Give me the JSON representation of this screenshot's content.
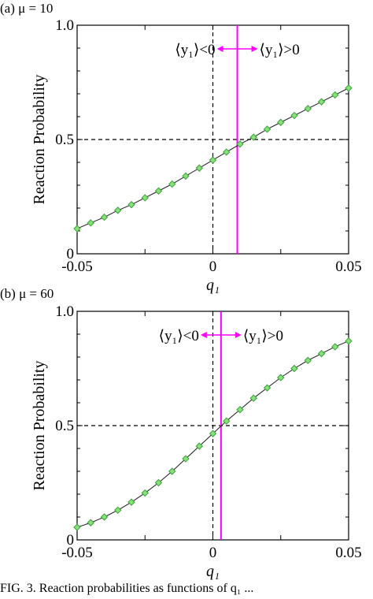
{
  "chart_data": [
    {
      "type": "line",
      "panel_label": "(a) μ = 10",
      "xlabel": "q₁",
      "ylabel": "Reaction Probability",
      "xlim": [
        -0.05,
        0.05
      ],
      "ylim": [
        0,
        1.0
      ],
      "x_ticks": [
        "-0.05",
        "0",
        "0.05"
      ],
      "y_ticks": [
        "0",
        "0.5",
        "1.0"
      ],
      "grid": false,
      "reference_lines": {
        "x": 0,
        "y": 0.5
      },
      "marker_line_x": 0.009,
      "annotation_left": "⟨y₁⟩<0",
      "annotation_right": "⟨y₁⟩>0",
      "series": [
        {
          "x": [
            -0.05,
            -0.045,
            -0.04,
            -0.035,
            -0.03,
            -0.025,
            -0.02,
            -0.015,
            -0.01,
            -0.005,
            0,
            0.005,
            0.01,
            0.015,
            0.02,
            0.025,
            0.03,
            0.035,
            0.04,
            0.045,
            0.05
          ],
          "values": [
            0.11,
            0.135,
            0.16,
            0.19,
            0.215,
            0.245,
            0.275,
            0.305,
            0.34,
            0.375,
            0.41,
            0.445,
            0.48,
            0.51,
            0.545,
            0.575,
            0.605,
            0.635,
            0.665,
            0.695,
            0.725
          ]
        }
      ],
      "colors": {
        "line": "#1a1a1a",
        "marker_fill": "#88e07a",
        "marker_stroke": "#3ca03c",
        "marker_line": "#ff00ff"
      }
    },
    {
      "type": "line",
      "panel_label": "(b) μ = 60",
      "xlabel": "q₁",
      "ylabel": "Reaction Probability",
      "xlim": [
        -0.05,
        0.05
      ],
      "ylim": [
        0,
        1.0
      ],
      "x_ticks": [
        "-0.05",
        "0",
        "0.05"
      ],
      "y_ticks": [
        "0",
        "0.5",
        "1.0"
      ],
      "grid": false,
      "reference_lines": {
        "x": 0,
        "y": 0.5
      },
      "marker_line_x": 0.003,
      "annotation_left": "⟨y₁⟩<0",
      "annotation_right": "⟨y₁⟩>0",
      "series": [
        {
          "x": [
            -0.05,
            -0.045,
            -0.04,
            -0.035,
            -0.03,
            -0.025,
            -0.02,
            -0.015,
            -0.01,
            -0.005,
            0,
            0.005,
            0.01,
            0.015,
            0.02,
            0.025,
            0.03,
            0.035,
            0.04,
            0.045,
            0.05
          ],
          "values": [
            0.055,
            0.075,
            0.1,
            0.13,
            0.165,
            0.205,
            0.25,
            0.3,
            0.355,
            0.41,
            0.465,
            0.52,
            0.57,
            0.62,
            0.665,
            0.71,
            0.75,
            0.785,
            0.815,
            0.845,
            0.87
          ]
        }
      ],
      "colors": {
        "line": "#1a1a1a",
        "marker_fill": "#88e07a",
        "marker_stroke": "#3ca03c",
        "marker_line": "#ff00ff"
      }
    }
  ],
  "caption_fragment": "FIG. 3. Reaction probabilities as functions of q₁ ..."
}
